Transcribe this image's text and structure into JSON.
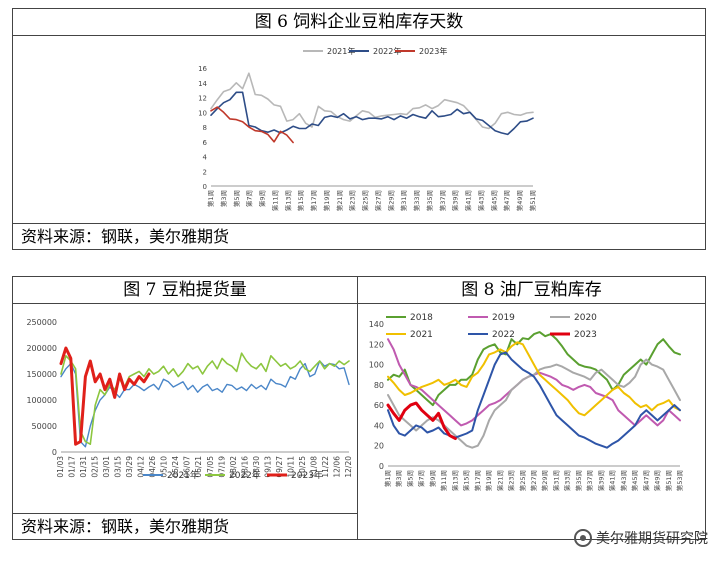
{
  "chart6": {
    "title": "图 6  饲料企业豆粕库存天数",
    "source": "资料来源：钢联，美尔雅期货"
  },
  "chart7": {
    "title": "图 7  豆粕提货量",
    "source": "资料来源：钢联，美尔雅期货"
  },
  "chart8": {
    "title": "图 8  油厂豆粕库存"
  },
  "watermark": "美尔雅期货研究院",
  "chart_data": [
    {
      "type": "line",
      "id": "c6",
      "ylim": [
        0,
        16
      ],
      "yticks": [
        0,
        2,
        4,
        6,
        8,
        10,
        12,
        14,
        16
      ],
      "xticks": [
        "第1周",
        "第3周",
        "第5周",
        "第7周",
        "第9周",
        "第11周",
        "第13周",
        "第15周",
        "第17周",
        "第19周",
        "第21周",
        "第23周",
        "第25周",
        "第27周",
        "第29周",
        "第31周",
        "第33周",
        "第35周",
        "第37周",
        "第39周",
        "第41周",
        "第43周",
        "第45周",
        "第47周",
        "第49周",
        "第51周"
      ],
      "legend": "top",
      "series": [
        {
          "name": "2021年",
          "color": "#b8b8b8",
          "width": 1.6,
          "values": [
            10.5,
            11.7,
            12.8,
            13.1,
            14.0,
            13.2,
            15.3,
            12.4,
            12.3,
            11.8,
            11.0,
            10.8,
            8.8,
            9.0,
            9.8,
            8.5,
            8.0,
            10.8,
            10.2,
            10.1,
            9.4,
            9.0,
            8.8,
            9.5,
            10.2,
            10.0,
            9.3,
            9.5,
            9.6,
            9.7,
            9.8,
            9.7,
            10.5,
            10.6,
            11.0,
            10.5,
            10.9,
            11.7,
            11.5,
            11.3,
            10.9,
            10.0,
            9.0,
            8.0,
            7.8,
            8.5,
            9.8,
            10.0,
            9.7,
            9.6,
            9.9,
            10.0
          ]
        },
        {
          "name": "2022年",
          "color": "#2e4d87",
          "width": 1.6,
          "values": [
            9.6,
            10.5,
            11.3,
            11.7,
            12.7,
            12.7,
            8.2,
            8.0,
            7.5,
            7.3,
            7.6,
            7.2,
            7.6,
            8.1,
            7.8,
            7.8,
            8.4,
            8.2,
            9.3,
            9.5,
            9.3,
            9.8,
            9.1,
            9.4,
            9.0,
            9.2,
            9.2,
            9.1,
            9.4,
            9.0,
            9.5,
            9.2,
            9.7,
            9.4,
            9.2,
            10.2,
            9.4,
            9.5,
            9.7,
            10.4,
            9.8,
            10.0,
            9.1,
            8.9,
            8.2,
            7.5,
            7.2,
            7.0,
            7.8,
            8.7,
            8.8,
            9.2
          ]
        },
        {
          "name": "2023年",
          "color": "#c0392b",
          "width": 1.6,
          "values": [
            10.2,
            10.7,
            10.0,
            9.1,
            9.0,
            8.7,
            8.0,
            7.5,
            7.4,
            7.0,
            6.0,
            7.4,
            6.9,
            5.9
          ]
        }
      ]
    },
    {
      "type": "line",
      "id": "c7",
      "ylim": [
        0,
        250000
      ],
      "yticks": [
        0,
        50000,
        100000,
        150000,
        200000,
        250000
      ],
      "xticks": [
        "01/03",
        "01/17",
        "01/31",
        "02/15",
        "03/01",
        "03/15",
        "03/29",
        "04/12",
        "04/26",
        "05/10",
        "05/24",
        "06/07",
        "06/21",
        "07/05",
        "07/19",
        "08/02",
        "08/16",
        "08/30",
        "09/13",
        "09/27",
        "10/11",
        "10/25",
        "11/08",
        "11/22",
        "12/06",
        "12/20"
      ],
      "legend": "bottom",
      "series": [
        {
          "name": "2021年",
          "color": "#4a86c8",
          "width": 1.4,
          "values": [
            145000,
            160000,
            170000,
            150000,
            20000,
            10000,
            50000,
            80000,
            100000,
            110000,
            125000,
            115000,
            105000,
            120000,
            120000,
            130000,
            125000,
            118000,
            125000,
            130000,
            120000,
            140000,
            135000,
            125000,
            130000,
            135000,
            120000,
            128000,
            115000,
            125000,
            130000,
            118000,
            122000,
            115000,
            130000,
            128000,
            120000,
            125000,
            118000,
            130000,
            122000,
            128000,
            120000,
            140000,
            132000,
            130000,
            125000,
            145000,
            140000,
            160000,
            170000,
            145000,
            150000,
            175000,
            165000,
            170000,
            168000,
            160000,
            162000,
            130000
          ]
        },
        {
          "name": "2022年",
          "color": "#8cc63f",
          "width": 1.6,
          "values": [
            150000,
            185000,
            175000,
            160000,
            40000,
            20000,
            15000,
            90000,
            120000,
            110000,
            130000,
            120000,
            140000,
            125000,
            145000,
            150000,
            155000,
            145000,
            160000,
            150000,
            155000,
            165000,
            150000,
            160000,
            145000,
            155000,
            170000,
            160000,
            165000,
            150000,
            165000,
            175000,
            160000,
            180000,
            170000,
            165000,
            155000,
            190000,
            175000,
            165000,
            160000,
            170000,
            155000,
            185000,
            175000,
            165000,
            170000,
            160000,
            165000,
            175000,
            160000,
            155000,
            165000,
            175000,
            160000,
            170000,
            165000,
            175000,
            168000,
            175000
          ]
        },
        {
          "name": "2023年",
          "color": "#e0201a",
          "width": 3,
          "values": [
            170000,
            200000,
            180000,
            15000,
            20000,
            145000,
            175000,
            135000,
            150000,
            120000,
            140000,
            105000,
            150000,
            120000,
            140000,
            130000,
            145000,
            135000,
            150000
          ]
        }
      ]
    },
    {
      "type": "line",
      "id": "c8",
      "ylim": [
        0,
        140
      ],
      "yticks": [
        0,
        20,
        40,
        60,
        80,
        100,
        120,
        140
      ],
      "xticks": [
        "第1周",
        "第3周",
        "第5周",
        "第7周",
        "第9周",
        "第11周",
        "第13周",
        "第15周",
        "第17周",
        "第19周",
        "第21周",
        "第23周",
        "第25周",
        "第27周",
        "第29周",
        "第31周",
        "第33周",
        "第35周",
        "第37周",
        "第39周",
        "第41周",
        "第43周",
        "第45周",
        "第47周",
        "第49周",
        "第51周",
        "第53周"
      ],
      "legend": "top",
      "series": [
        {
          "name": "2018",
          "color": "#5aa030",
          "width": 2,
          "values": [
            85,
            90,
            88,
            95,
            80,
            75,
            70,
            65,
            60,
            70,
            75,
            80,
            80,
            85,
            85,
            90,
            105,
            115,
            118,
            120,
            112,
            110,
            125,
            120,
            126,
            125,
            130,
            132,
            128,
            130,
            125,
            118,
            110,
            105,
            100,
            98,
            97,
            95,
            90,
            85,
            75,
            80,
            90,
            95,
            100,
            105,
            100,
            110,
            120,
            125,
            118,
            112,
            110
          ]
        },
        {
          "name": "2019",
          "color": "#c05ab0",
          "width": 2,
          "values": [
            125,
            115,
            100,
            90,
            80,
            78,
            75,
            70,
            65,
            60,
            55,
            50,
            45,
            40,
            42,
            45,
            50,
            55,
            60,
            62,
            65,
            70,
            75,
            80,
            85,
            88,
            90,
            92,
            90,
            88,
            85,
            80,
            78,
            75,
            78,
            80,
            78,
            72,
            70,
            68,
            65,
            55,
            50,
            45,
            40,
            45,
            50,
            45,
            40,
            45,
            55,
            50,
            45
          ]
        },
        {
          "name": "2020",
          "color": "#a8a8a8",
          "width": 2,
          "values": [
            70,
            60,
            50,
            45,
            40,
            35,
            40,
            45,
            48,
            45,
            40,
            35,
            30,
            25,
            20,
            18,
            20,
            30,
            45,
            55,
            60,
            65,
            75,
            80,
            85,
            88,
            90,
            95,
            97,
            98,
            100,
            98,
            95,
            92,
            90,
            88,
            85,
            92,
            95,
            90,
            85,
            80,
            78,
            82,
            88,
            100,
            105,
            100,
            98,
            95,
            85,
            75,
            65
          ]
        },
        {
          "name": "2021",
          "color": "#f0c000",
          "width": 2,
          "values": [
            88,
            82,
            75,
            70,
            72,
            75,
            78,
            80,
            82,
            85,
            80,
            82,
            85,
            80,
            78,
            88,
            92,
            100,
            110,
            112,
            115,
            112,
            118,
            122,
            120,
            110,
            100,
            90,
            85,
            80,
            75,
            70,
            65,
            58,
            52,
            50,
            55,
            60,
            65,
            70,
            75,
            78,
            72,
            68,
            62,
            58,
            60,
            55,
            60,
            62,
            65,
            58,
            55
          ]
        },
        {
          "name": "2022",
          "color": "#2e55a8",
          "width": 2,
          "values": [
            55,
            40,
            32,
            30,
            35,
            40,
            38,
            33,
            35,
            38,
            32,
            30,
            28,
            30,
            32,
            35,
            55,
            70,
            85,
            100,
            110,
            112,
            105,
            100,
            95,
            92,
            88,
            80,
            70,
            60,
            50,
            45,
            40,
            35,
            30,
            28,
            25,
            22,
            20,
            18,
            22,
            25,
            30,
            35,
            40,
            50,
            55,
            50,
            45,
            50,
            55,
            60,
            55
          ]
        },
        {
          "name": "2023",
          "color": "#e00010",
          "width": 3,
          "values": [
            60,
            52,
            45,
            55,
            60,
            62,
            55,
            50,
            45,
            52,
            38,
            30,
            27
          ]
        }
      ]
    }
  ]
}
